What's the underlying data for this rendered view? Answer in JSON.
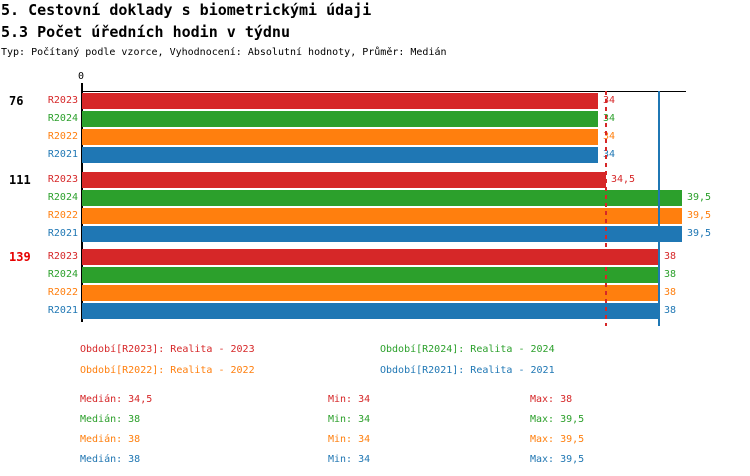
{
  "header": {
    "title": "5. Cestovní doklady s biometrickými údaji",
    "subtitle": "5.3 Počet úředních hodin v týdnu",
    "meta": "Typ: Počítaný podle vzorce, Vyhodnocení: Absolutní hodnoty, Průměr: Medián"
  },
  "colors": {
    "r2023": "#d62728",
    "r2024": "#2ca02c",
    "r2022": "#ff7f0e",
    "r2021": "#1f77b4",
    "category_default": "#000000",
    "category_highlight": "#e60000",
    "axis": "#000000"
  },
  "chart_data": {
    "type": "bar",
    "orientation": "horizontal",
    "title": "5.3 Počet úředních hodin v týdnu",
    "categories": [
      "76",
      "111",
      "139"
    ],
    "highlighted_category": "139",
    "series": [
      {
        "name": "R2023",
        "color": "#d62728",
        "values": [
          34,
          34.5,
          38
        ],
        "value_labels": [
          "34",
          "34,5",
          "38"
        ]
      },
      {
        "name": "R2024",
        "color": "#2ca02c",
        "values": [
          34,
          39.5,
          38
        ],
        "value_labels": [
          "34",
          "39,5",
          "38"
        ]
      },
      {
        "name": "R2022",
        "color": "#ff7f0e",
        "values": [
          34,
          39.5,
          38
        ],
        "value_labels": [
          "34",
          "39,5",
          "38"
        ]
      },
      {
        "name": "R2021",
        "color": "#1f77b4",
        "values": [
          34,
          39.5,
          38
        ],
        "value_labels": [
          "34",
          "39,5",
          "38"
        ]
      }
    ],
    "x_axis": {
      "origin_label": "0",
      "min": 0,
      "max": 39.85,
      "grid": false
    },
    "reference_lines": [
      {
        "name": "median-line-r2023",
        "value": 34.5,
        "color": "#d62728",
        "style": "dashed"
      },
      {
        "name": "median-line-r2021",
        "value": 38,
        "color": "#1f77b4",
        "style": "solid"
      }
    ],
    "legend_position": "bottom"
  },
  "legend": {
    "items": [
      {
        "label": "Období[R2023]: Realita - 2023",
        "color": "#d62728"
      },
      {
        "label": "Období[R2024]: Realita - 2024",
        "color": "#2ca02c"
      },
      {
        "label": "Období[R2022]: Realita - 2022",
        "color": "#ff7f0e"
      },
      {
        "label": "Období[R2021]: Realita - 2021",
        "color": "#1f77b4"
      }
    ]
  },
  "stats": {
    "rows": [
      {
        "series": "R2023",
        "color": "#d62728",
        "median": "Medián: 34,5",
        "min": "Min: 34",
        "max": "Max: 38"
      },
      {
        "series": "R2024",
        "color": "#2ca02c",
        "median": "Medián: 38",
        "min": "Min: 34",
        "max": "Max: 39,5"
      },
      {
        "series": "R2022",
        "color": "#ff7f0e",
        "median": "Medián: 38",
        "min": "Min: 34",
        "max": "Max: 39,5"
      },
      {
        "series": "R2021",
        "color": "#1f77b4",
        "median": "Medián: 38",
        "min": "Min: 34",
        "max": "Max: 39,5"
      }
    ]
  }
}
